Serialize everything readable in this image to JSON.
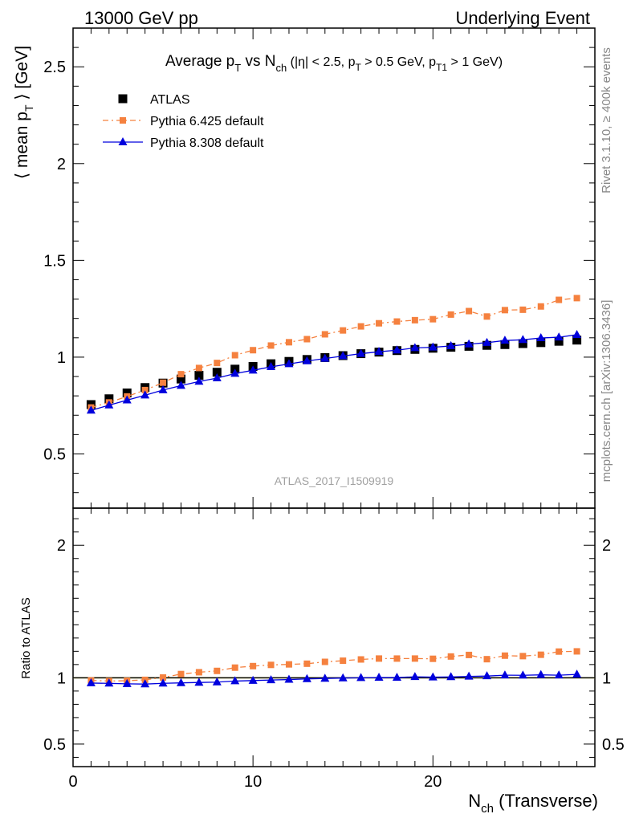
{
  "header": {
    "left": "13000 GeV pp",
    "right": "Underlying Event"
  },
  "side_text": {
    "rivet": "Rivet 3.1.10, ≥ 400k events",
    "mcplots": "mcplots.cern.ch [arXiv:1306.3436]"
  },
  "watermark": "ATLAS_2017_I1509919",
  "chart_data": {
    "type": "scatter",
    "title": "Average p_T vs N_ch (|η| < 2.5, p_T > 0.5 GeV, p_T1 > 1 GeV)",
    "xlabel": "N_ch (Transverse)",
    "ylabel": "⟨ mean p_T ⟩ [GeV]",
    "ratio_ylabel": "Ratio to ATLAS",
    "xlim": [
      0,
      29
    ],
    "ylim": [
      0.22,
      2.7
    ],
    "ratio_ylim": [
      0.33,
      2.28
    ],
    "x_ticks": [
      0,
      10,
      20
    ],
    "y_ticks": [
      0.5,
      1,
      1.5,
      2,
      2.5
    ],
    "ratio_ticks": [
      0.5,
      1,
      2
    ],
    "legend_position": "top-left",
    "x": [
      1,
      2,
      3,
      4,
      5,
      6,
      7,
      8,
      9,
      10,
      11,
      12,
      13,
      14,
      15,
      16,
      17,
      18,
      19,
      20,
      21,
      22,
      23,
      24,
      25,
      26,
      27,
      28
    ],
    "series": [
      {
        "name": "ATLAS",
        "color": "#000000",
        "marker": "square",
        "values": [
          0.755,
          0.785,
          0.815,
          0.843,
          0.866,
          0.887,
          0.906,
          0.922,
          0.938,
          0.952,
          0.966,
          0.978,
          0.988,
          0.998,
          1.008,
          1.018,
          1.026,
          1.034,
          1.04,
          1.046,
          1.051,
          1.056,
          1.061,
          1.065,
          1.07,
          1.075,
          1.082,
          1.088
        ]
      },
      {
        "name": "Pythia 6.425 default",
        "color": "#f5813f",
        "marker": "square",
        "line": "dashdot",
        "values": [
          0.74,
          0.766,
          0.797,
          0.83,
          0.868,
          0.912,
          0.944,
          0.97,
          1.01,
          1.036,
          1.06,
          1.077,
          1.093,
          1.118,
          1.138,
          1.159,
          1.175,
          1.184,
          1.191,
          1.196,
          1.22,
          1.238,
          1.21,
          1.243,
          1.245,
          1.262,
          1.296,
          1.305
        ]
      },
      {
        "name": "Pythia 8.308 default",
        "color": "#0000dd",
        "marker": "triangle",
        "line": "solid",
        "values": [
          0.725,
          0.752,
          0.778,
          0.803,
          0.83,
          0.853,
          0.874,
          0.892,
          0.915,
          0.932,
          0.95,
          0.965,
          0.98,
          0.993,
          1.006,
          1.018,
          1.028,
          1.036,
          1.048,
          1.051,
          1.058,
          1.067,
          1.075,
          1.086,
          1.09,
          1.099,
          1.103,
          1.116
        ]
      }
    ]
  }
}
